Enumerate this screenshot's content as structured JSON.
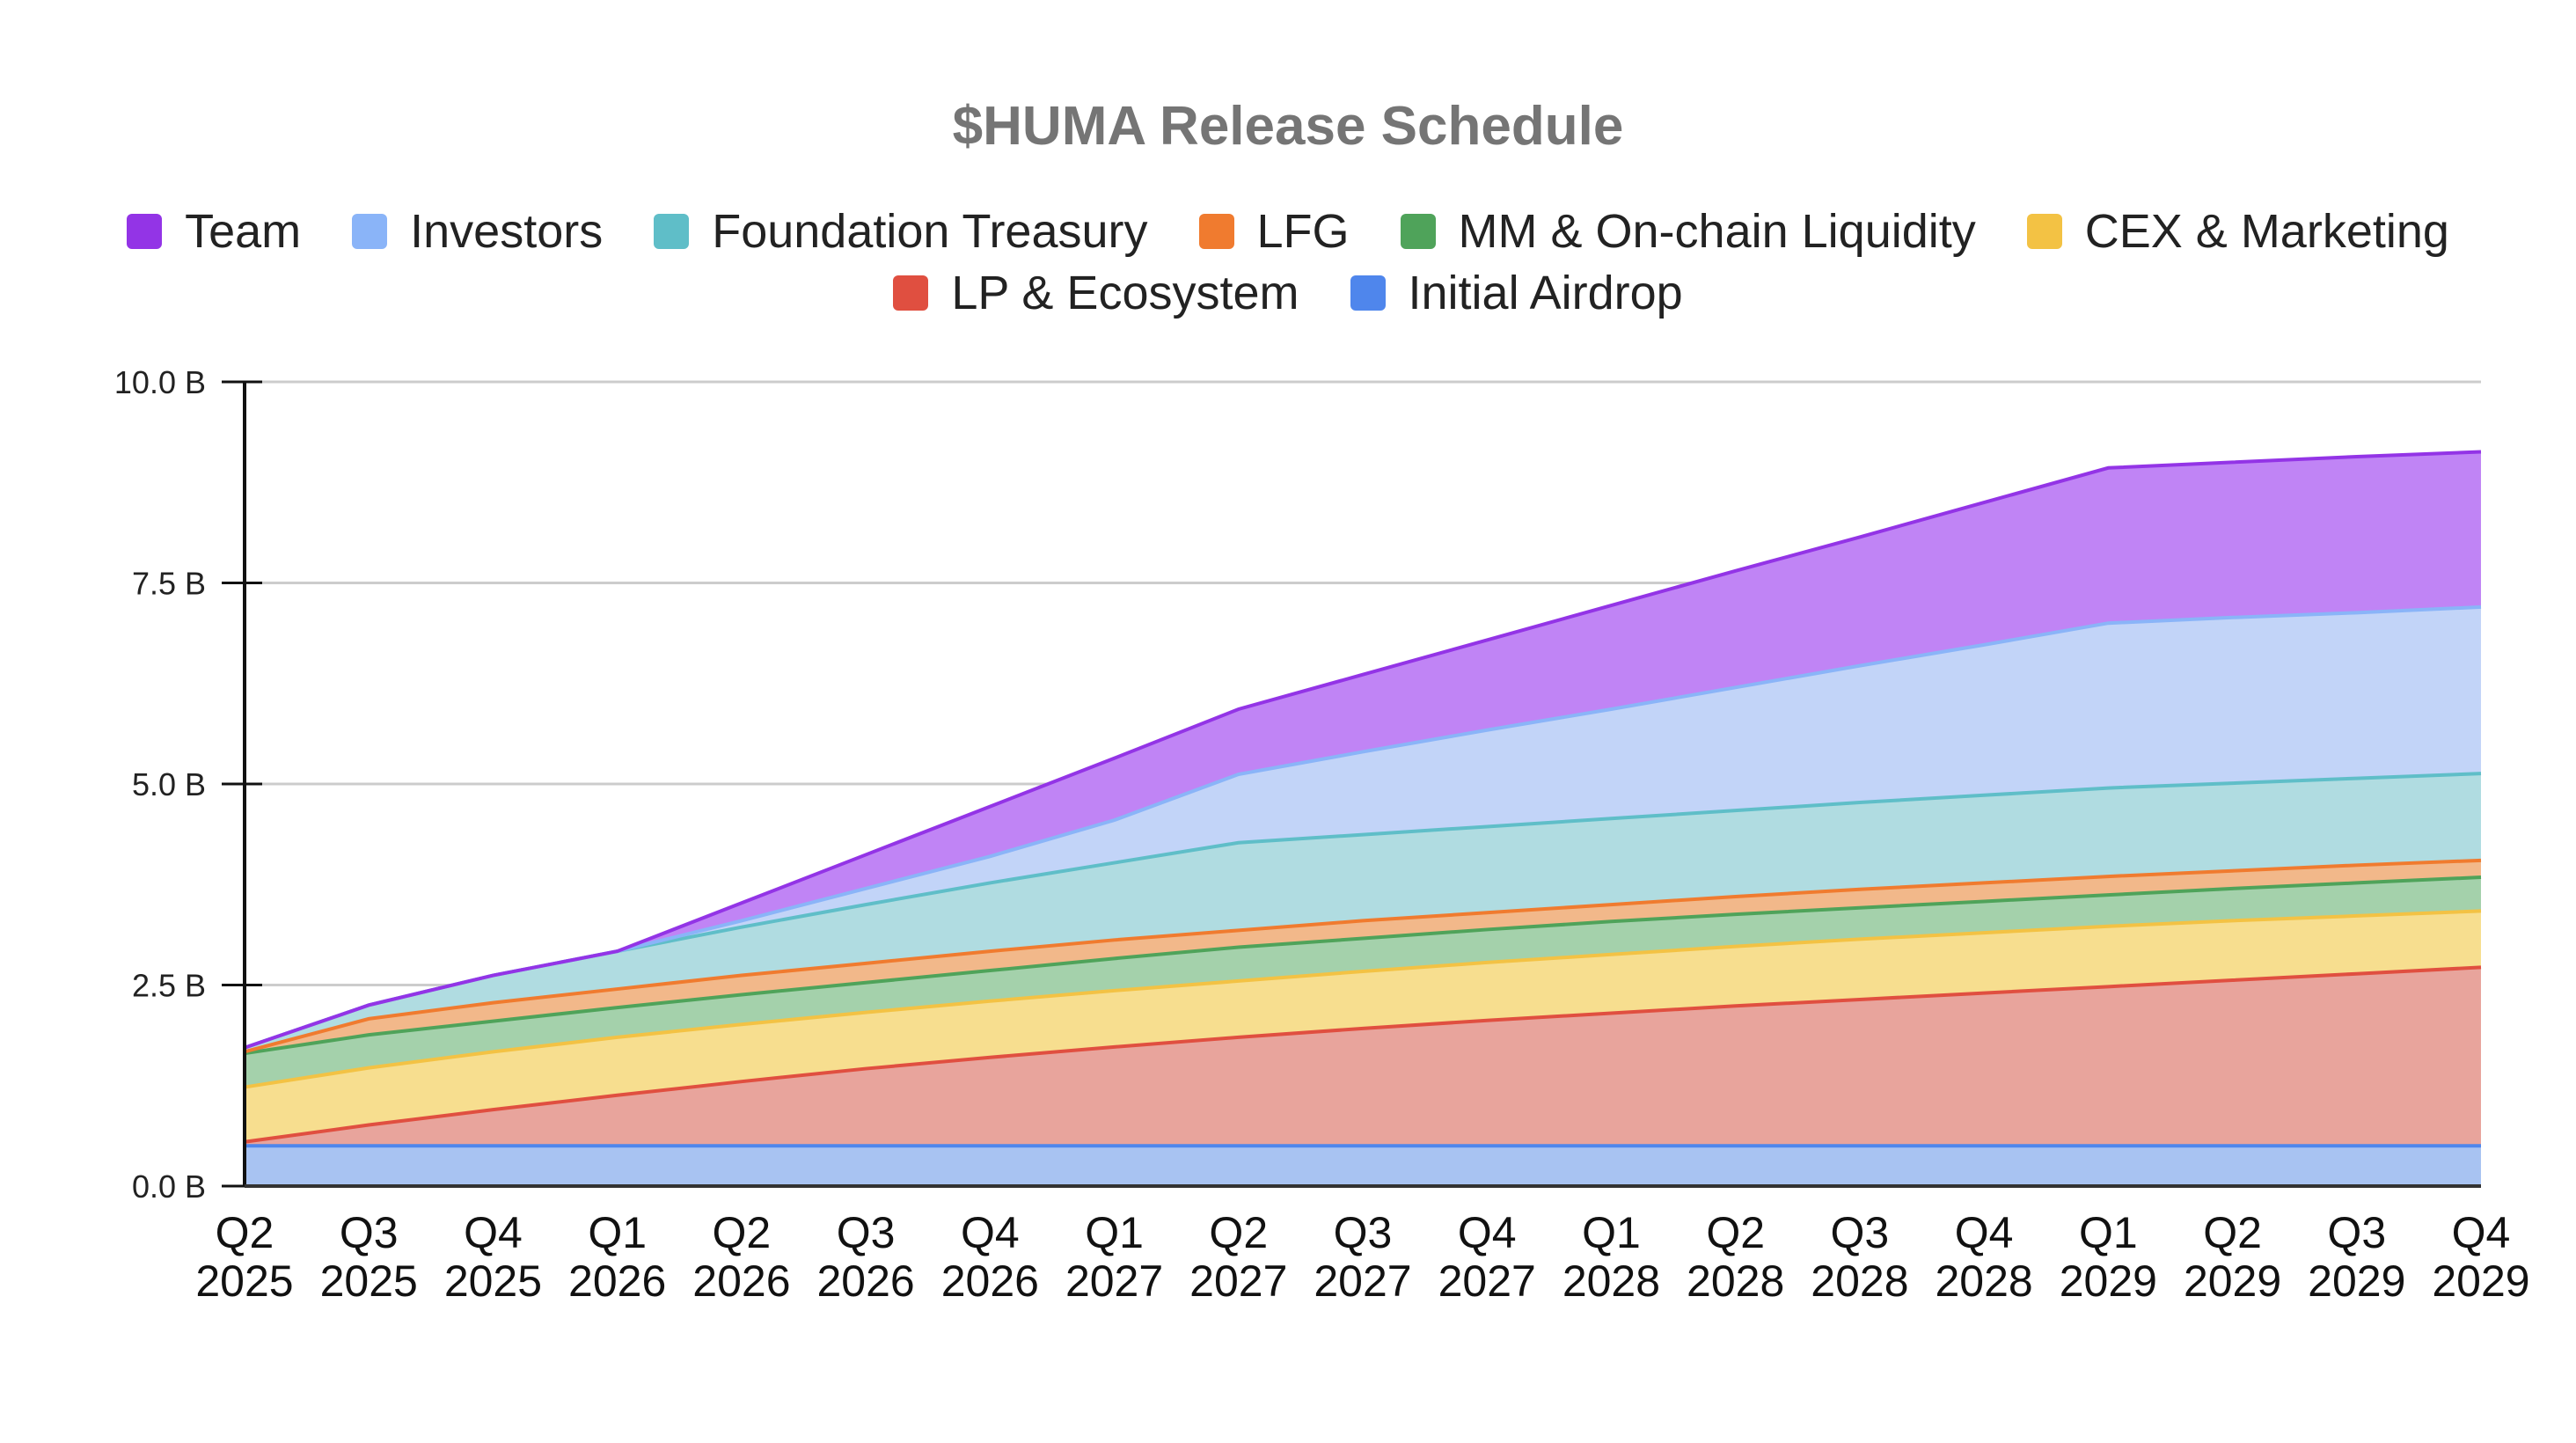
{
  "chart_data": {
    "type": "area",
    "stacked": true,
    "title": "$HUMA Release Schedule",
    "xlabel": "",
    "ylabel": "",
    "ylim": [
      0,
      10
    ],
    "yticks": [
      "0.0 B",
      "2.5 B",
      "5.0 B",
      "7.5 B",
      "10.0 B"
    ],
    "ytick_values": [
      0,
      2.5,
      5,
      7.5,
      10
    ],
    "grid": true,
    "legend_placement": "top",
    "categories": [
      [
        "Q2",
        "2025"
      ],
      [
        "Q3",
        "2025"
      ],
      [
        "Q4",
        "2025"
      ],
      [
        "Q1",
        "2026"
      ],
      [
        "Q2",
        "2026"
      ],
      [
        "Q3",
        "2026"
      ],
      [
        "Q4",
        "2026"
      ],
      [
        "Q1",
        "2027"
      ],
      [
        "Q2",
        "2027"
      ],
      [
        "Q3",
        "2027"
      ],
      [
        "Q4",
        "2027"
      ],
      [
        "Q1",
        "2028"
      ],
      [
        "Q2",
        "2028"
      ],
      [
        "Q3",
        "2028"
      ],
      [
        "Q4",
        "2028"
      ],
      [
        "Q1",
        "2029"
      ],
      [
        "Q2",
        "2029"
      ],
      [
        "Q3",
        "2029"
      ],
      [
        "Q4",
        "2029"
      ]
    ],
    "unit": "B",
    "stack_order_bottom_to_top": [
      "Initial Airdrop",
      "LP & Ecosystem",
      "CEX & Marketing",
      "MM & On-chain Liquidity",
      "LFG",
      "Foundation Treasury",
      "Investors",
      "Team"
    ],
    "legend_order": [
      "Team",
      "Investors",
      "Foundation Treasury",
      "LFG",
      "MM & On-chain Liquidity",
      "CEX & Marketing",
      "LP & Ecosystem",
      "Initial Airdrop"
    ],
    "series": [
      {
        "name": "Team",
        "color": "#9334e6",
        "fill": "#c084f5",
        "values": [
          0,
          0,
          0,
          0,
          0.22,
          0.42,
          0.62,
          0.77,
          0.81,
          0.96,
          1.12,
          1.29,
          1.45,
          1.6,
          1.77,
          1.93,
          1.93,
          1.94,
          1.93
        ]
      },
      {
        "name": "Investors",
        "color": "#8ab4f8",
        "fill": "#c2d4f8",
        "values": [
          0,
          0,
          0,
          0,
          0.08,
          0.2,
          0.33,
          0.53,
          0.85,
          1.03,
          1.2,
          1.36,
          1.53,
          1.7,
          1.87,
          2.05,
          2.06,
          2.06,
          2.07
        ]
      },
      {
        "name": "Foundation Treasury",
        "color": "#5fbec8",
        "fill": "#b0dce1",
        "values": [
          0.05,
          0.17,
          0.34,
          0.47,
          0.6,
          0.73,
          0.85,
          0.96,
          1.09,
          1.07,
          1.07,
          1.07,
          1.07,
          1.08,
          1.09,
          1.1,
          1.09,
          1.08,
          1.08
        ]
      },
      {
        "name": "LFG",
        "color": "#f07b2f",
        "fill": "#f2b88a",
        "values": [
          0.02,
          0.2,
          0.23,
          0.23,
          0.24,
          0.24,
          0.24,
          0.23,
          0.21,
          0.22,
          0.21,
          0.21,
          0.22,
          0.23,
          0.23,
          0.23,
          0.22,
          0.22,
          0.21
        ]
      },
      {
        "name": "MM & On-chain Liquidity",
        "color": "#4fa35a",
        "fill": "#a4d1ab",
        "values": [
          0.42,
          0.41,
          0.38,
          0.37,
          0.37,
          0.37,
          0.38,
          0.4,
          0.42,
          0.41,
          0.41,
          0.41,
          0.4,
          0.39,
          0.39,
          0.39,
          0.4,
          0.41,
          0.42
        ]
      },
      {
        "name": "CEX & Marketing",
        "color": "#f3c244",
        "fill": "#f7de8f",
        "values": [
          0.68,
          0.71,
          0.72,
          0.72,
          0.71,
          0.7,
          0.7,
          0.7,
          0.7,
          0.71,
          0.72,
          0.73,
          0.74,
          0.75,
          0.75,
          0.75,
          0.74,
          0.72,
          0.7
        ]
      },
      {
        "name": "LP & Ecosystem",
        "color": "#e04f40",
        "fill": "#e8a49c",
        "values": [
          0.05,
          0.26,
          0.45,
          0.63,
          0.8,
          0.96,
          1.1,
          1.23,
          1.35,
          1.46,
          1.56,
          1.65,
          1.74,
          1.82,
          1.9,
          1.98,
          2.06,
          2.14,
          2.22
        ]
      },
      {
        "name": "Initial Airdrop",
        "color": "#4f86ec",
        "fill": "#a8c3f2",
        "values": [
          0.5,
          0.5,
          0.5,
          0.5,
          0.5,
          0.5,
          0.5,
          0.5,
          0.5,
          0.5,
          0.5,
          0.5,
          0.5,
          0.5,
          0.5,
          0.5,
          0.5,
          0.5,
          0.5
        ]
      }
    ]
  }
}
